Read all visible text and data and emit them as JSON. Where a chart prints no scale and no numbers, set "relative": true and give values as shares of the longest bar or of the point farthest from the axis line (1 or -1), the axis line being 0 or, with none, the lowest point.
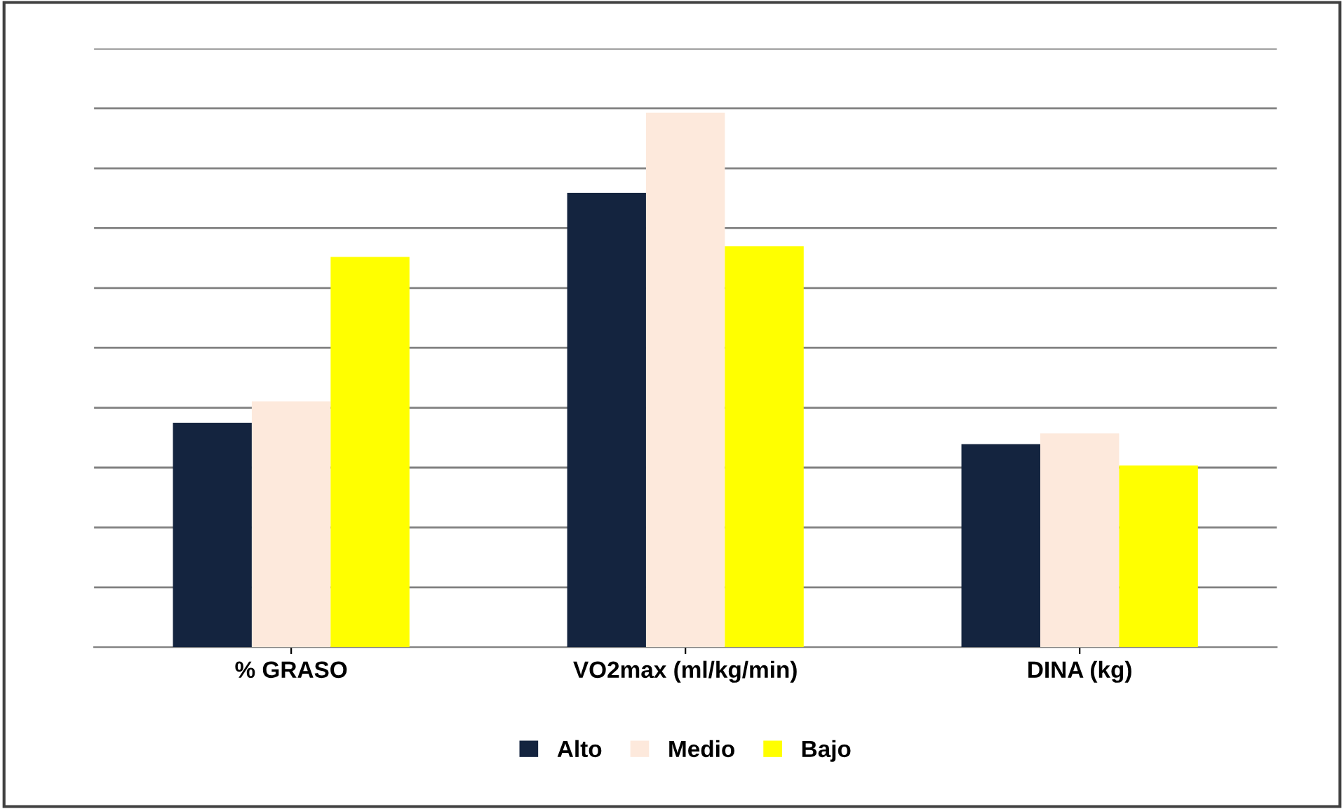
{
  "chart_data": {
    "type": "bar",
    "relative": true,
    "categories": [
      "% GRASO",
      "VO2max (ml/kg/min)",
      "DINA (kg)"
    ],
    "series": [
      {
        "name": "Alto",
        "color": "#14243f",
        "values": [
          0.42,
          0.85,
          0.38
        ]
      },
      {
        "name": "Medio",
        "color": "#fde9dc",
        "values": [
          0.46,
          1,
          0.4
        ]
      },
      {
        "name": "Bajo",
        "color": "#ffff00",
        "values": [
          0.73,
          0.75,
          0.34
        ]
      }
    ],
    "grid": "y",
    "legend": "bottom"
  }
}
